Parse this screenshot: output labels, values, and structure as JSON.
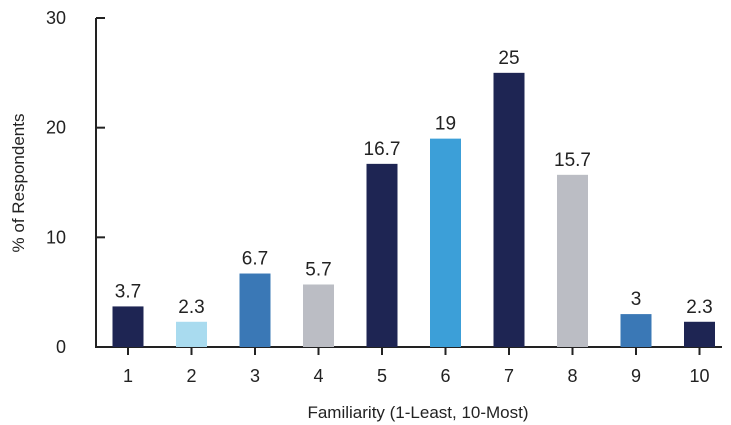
{
  "chart_data": {
    "type": "bar",
    "title": "",
    "xlabel": "Familiarity (1-Least, 10-Most)",
    "ylabel": "% of Respondents",
    "categories": [
      "1",
      "2",
      "3",
      "4",
      "5",
      "6",
      "7",
      "8",
      "9",
      "10"
    ],
    "values": [
      3.7,
      2.3,
      6.7,
      5.7,
      16.7,
      19,
      25,
      15.7,
      3,
      2.3
    ],
    "data_labels": [
      "3.7",
      "2.3",
      "6.7",
      "5.7",
      "16.7",
      "19",
      "25",
      "15.7",
      "3",
      "2.3"
    ],
    "bar_colors": [
      "#1e2553",
      "#a9dbef",
      "#3a78b6",
      "#bbbdc4",
      "#1e2553",
      "#3c9fd8",
      "#1e2553",
      "#bbbdc4",
      "#3a78b6",
      "#1e2553"
    ],
    "ylim": [
      0,
      30
    ],
    "yticks": [
      "0",
      "10",
      "20",
      "30"
    ],
    "grid": false,
    "legend": "none"
  }
}
